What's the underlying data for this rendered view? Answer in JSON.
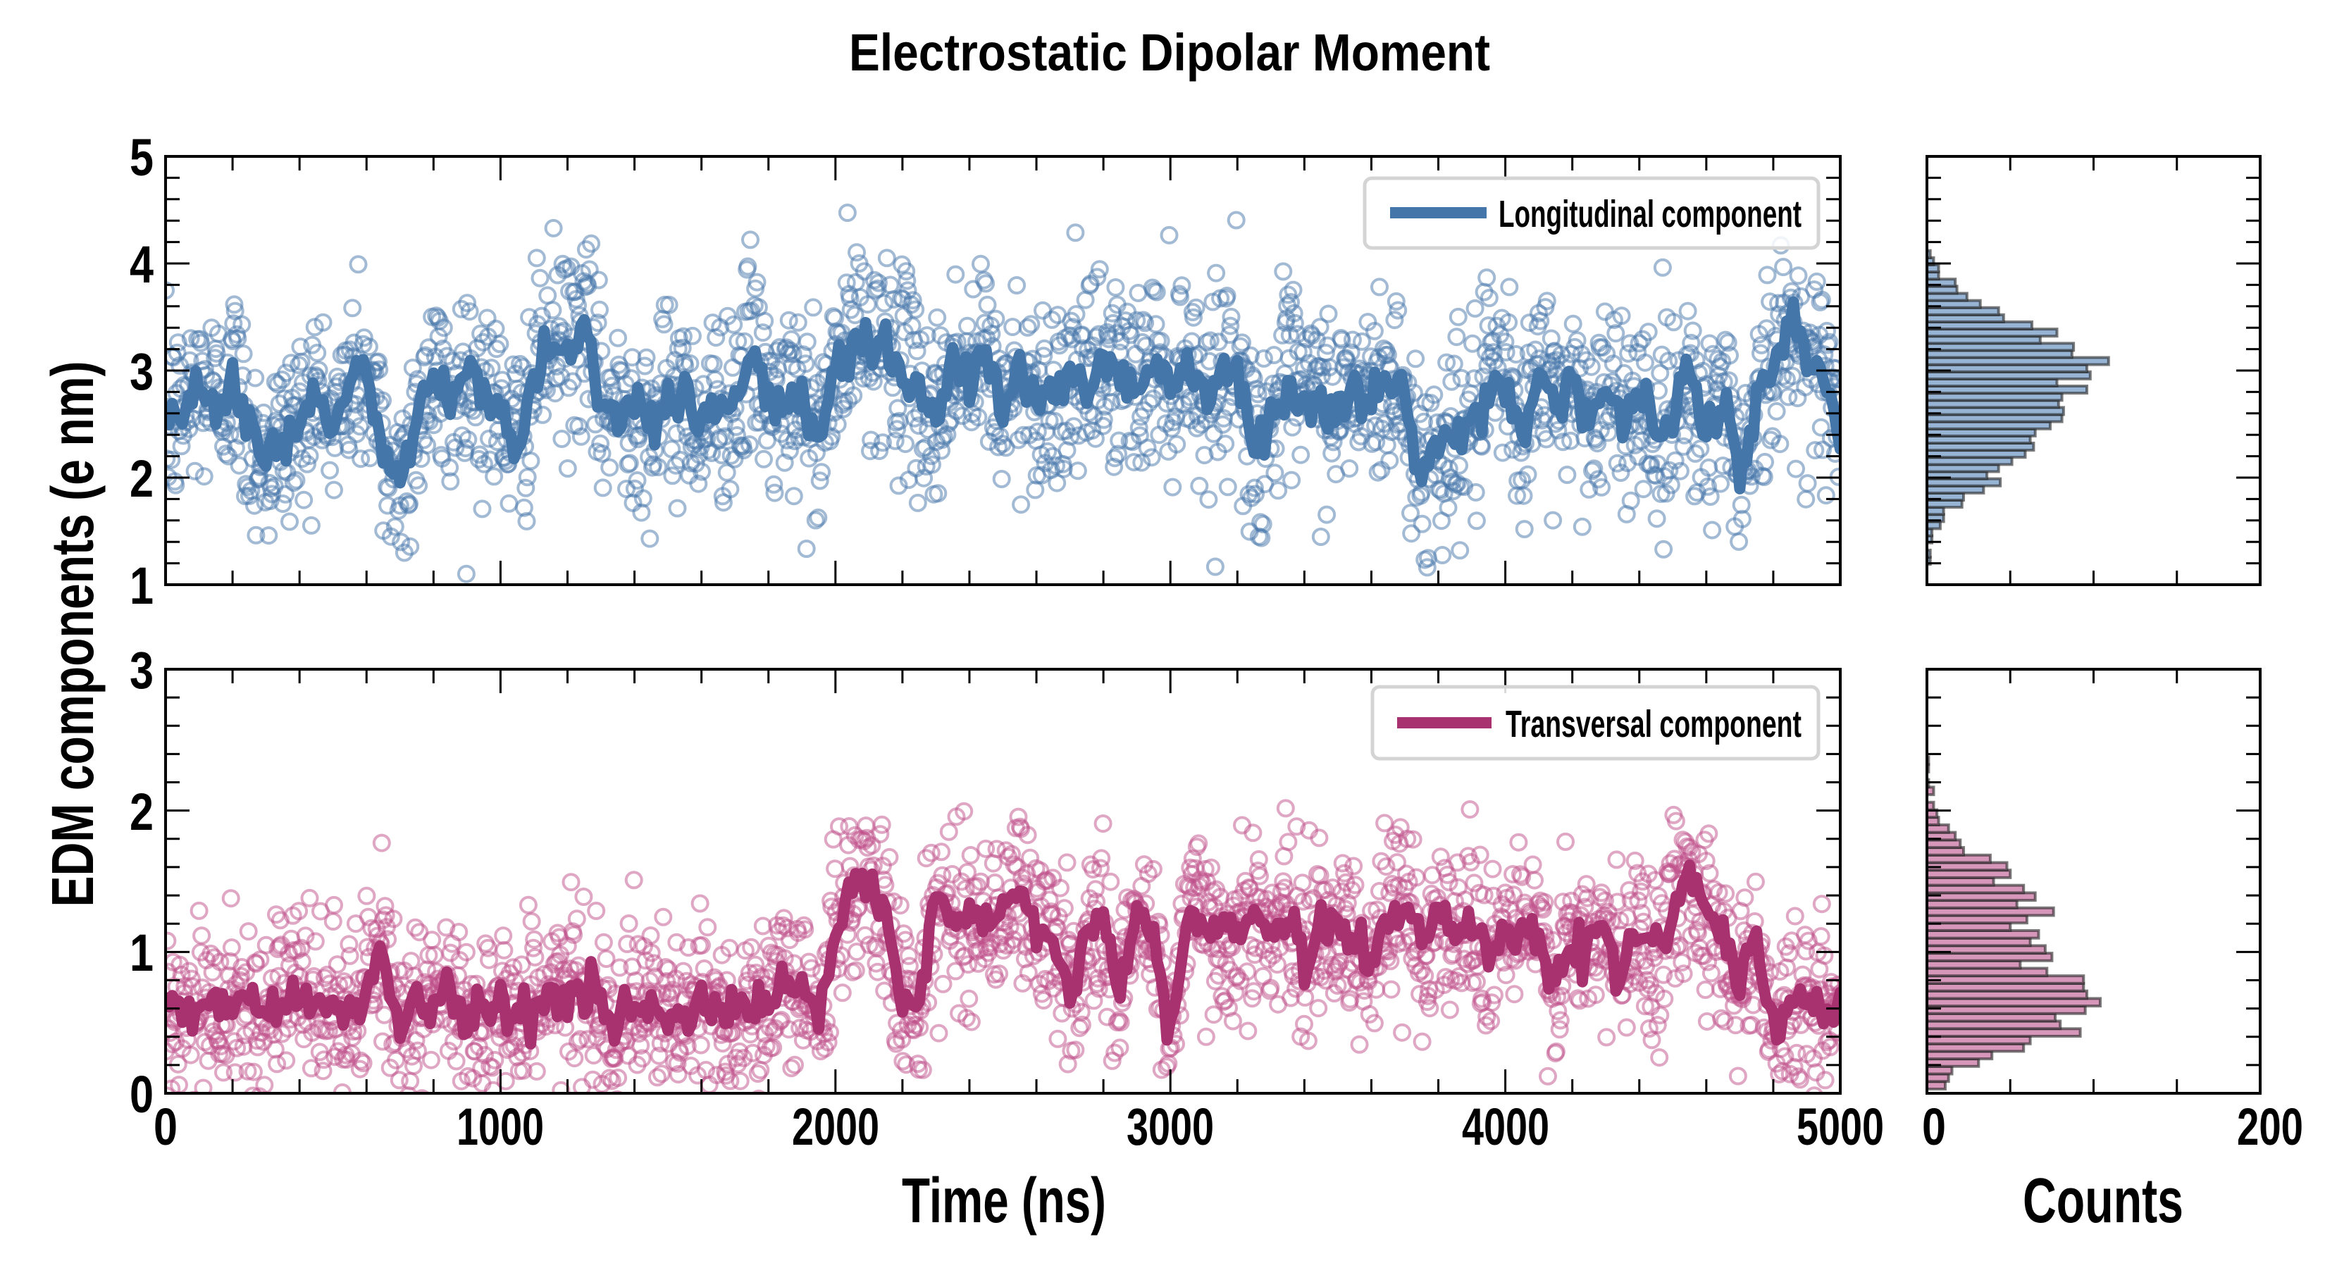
{
  "chart_data": [
    {
      "type": "scatter",
      "panel": "top",
      "title": "Electrostatic Dipolar Moment",
      "xlabel": "Time (ns)",
      "ylabel": "EDM components (e nm)",
      "xlim": [
        0,
        5000
      ],
      "ylim": [
        1,
        5
      ],
      "xticks": [
        0,
        1000,
        2000,
        3000,
        4000,
        5000
      ],
      "yticks": [
        1,
        2,
        3,
        4,
        5
      ],
      "legend": {
        "position": "top-right",
        "entries": [
          "Longitudinal component"
        ]
      },
      "series": [
        {
          "name": "Longitudinal component",
          "color": "#4576a9",
          "marker_color": "#4576a9",
          "scatter_spread": 0.45,
          "scatter_count": 2000,
          "line_step_ns": 50,
          "line_values": [
            2.5,
            2.6,
            2.9,
            2.7,
            3.0,
            2.4,
            2.2,
            2.35,
            2.5,
            2.8,
            2.4,
            2.9,
            3.0,
            2.2,
            1.9,
            2.6,
            2.9,
            2.7,
            3.0,
            2.8,
            2.6,
            2.3,
            2.9,
            3.3,
            3.2,
            3.4,
            2.7,
            2.6,
            2.7,
            2.55,
            2.7,
            2.8,
            2.5,
            2.7,
            2.75,
            3.2,
            2.7,
            2.6,
            2.75,
            2.3,
            3.0,
            3.3,
            3.3,
            3.25,
            3.0,
            2.8,
            2.5,
            3.1,
            2.9,
            3.2,
            2.6,
            3.0,
            2.8,
            2.7,
            3.0,
            2.8,
            3.1,
            3.0,
            2.8,
            3.1,
            2.9,
            3.2,
            2.7,
            3.0,
            3.1,
            2.2,
            2.6,
            2.9,
            2.7,
            2.8,
            2.6,
            2.85,
            2.7,
            2.9,
            2.7,
            2.0,
            2.3,
            2.4,
            2.5,
            2.8,
            2.9,
            2.4,
            3.0,
            2.7,
            2.9,
            2.6,
            2.8,
            2.5,
            2.9,
            2.3,
            2.6,
            3.0,
            2.4,
            2.8,
            2.1,
            2.7,
            3.0,
            3.3,
            3.2,
            3.0,
            2.3
          ]
        }
      ]
    },
    {
      "type": "scatter",
      "panel": "bottom",
      "xlabel": "Time (ns)",
      "xlim": [
        0,
        5000
      ],
      "ylim": [
        0,
        3
      ],
      "xticks": [
        0,
        1000,
        2000,
        3000,
        4000,
        5000
      ],
      "yticks": [
        0,
        1,
        2,
        3
      ],
      "legend": {
        "position": "top-right",
        "entries": [
          "Transversal component"
        ]
      },
      "series": [
        {
          "name": "Transversal component",
          "color": "#a8326f",
          "marker_color": "#c0508a",
          "scatter_spread": 0.3,
          "scatter_count": 2000,
          "line_step_ns": 50,
          "line_values": [
            0.6,
            0.55,
            0.6,
            0.65,
            0.6,
            0.7,
            0.6,
            0.65,
            0.75,
            0.6,
            0.65,
            0.55,
            0.7,
            1.05,
            0.45,
            0.7,
            0.6,
            0.65,
            0.55,
            0.6,
            0.65,
            0.55,
            0.6,
            0.7,
            0.7,
            0.7,
            0.6,
            0.55,
            0.65,
            0.6,
            0.5,
            0.55,
            0.6,
            0.55,
            0.6,
            0.6,
            0.65,
            0.7,
            0.8,
            0.55,
            1.1,
            1.45,
            1.4,
            1.3,
            0.6,
            0.65,
            1.35,
            1.2,
            1.25,
            1.2,
            1.3,
            1.45,
            1.15,
            1.1,
            0.7,
            1.1,
            1.25,
            0.65,
            1.3,
            1.1,
            0.4,
            1.3,
            1.2,
            1.15,
            1.1,
            1.3,
            1.1,
            1.25,
            0.9,
            1.25,
            1.15,
            1.1,
            0.9,
            1.3,
            1.3,
            1.1,
            1.25,
            1.1,
            1.3,
            1.0,
            1.15,
            1.2,
            1.05,
            0.8,
            1.05,
            1.0,
            1.1,
            0.85,
            1.2,
            1.0,
            1.3,
            1.6,
            1.3,
            1.0,
            0.8,
            1.05,
            0.45,
            0.6,
            0.65,
            0.55,
            0.65
          ]
        }
      ]
    },
    {
      "type": "bar",
      "orientation": "horizontal",
      "panel": "top-histogram",
      "xlabel": "Counts",
      "xlim": [
        0,
        200
      ],
      "ylim": [
        1,
        5
      ],
      "xticks": [
        0,
        200
      ],
      "color": "#97b4d4",
      "edge_color": "#222222",
      "bin_start": 1.19,
      "bin_width": 0.0666,
      "counts": [
        2,
        2,
        0,
        3,
        3,
        8,
        10,
        10,
        21,
        22,
        34,
        44,
        36,
        43,
        51,
        59,
        64,
        62,
        65,
        74,
        81,
        82,
        79,
        81,
        96,
        78,
        98,
        96,
        109,
        87,
        88,
        68,
        78,
        63,
        46,
        43,
        32,
        24,
        18,
        17,
        7,
        7,
        4,
        2
      ]
    },
    {
      "type": "bar",
      "orientation": "horizontal",
      "panel": "bottom-histogram",
      "xlabel": "Counts",
      "xlim": [
        0,
        200
      ],
      "ylim": [
        0,
        3
      ],
      "xticks": [
        0,
        200
      ],
      "color": "#d797bb",
      "edge_color": "#222222",
      "bin_start": 0.03,
      "bin_width": 0.0534,
      "counts": [
        11,
        13,
        15,
        31,
        39,
        58,
        62,
        92,
        80,
        77,
        95,
        104,
        96,
        94,
        94,
        72,
        56,
        75,
        71,
        62,
        67,
        50,
        60,
        76,
        54,
        65,
        58,
        40,
        50,
        48,
        38,
        22,
        20,
        17,
        13,
        7,
        6,
        4,
        0,
        4,
        1,
        0,
        1,
        1
      ]
    }
  ],
  "labels": {
    "title": "Electrostatic Dipolar Moment",
    "ylabel": "EDM components (e nm)",
    "xlabel": "Time (ns)",
    "hist_xlabel": "Counts",
    "legend_top": "Longitudinal component",
    "legend_bottom": "Transversal component",
    "top_yticks": [
      "1",
      "2",
      "3",
      "4",
      "5"
    ],
    "bottom_yticks": [
      "0",
      "1",
      "2",
      "3"
    ],
    "xticks": [
      "0",
      "1000",
      "2000",
      "3000",
      "4000",
      "5000"
    ],
    "hist_xticks": [
      "0",
      "200"
    ]
  }
}
